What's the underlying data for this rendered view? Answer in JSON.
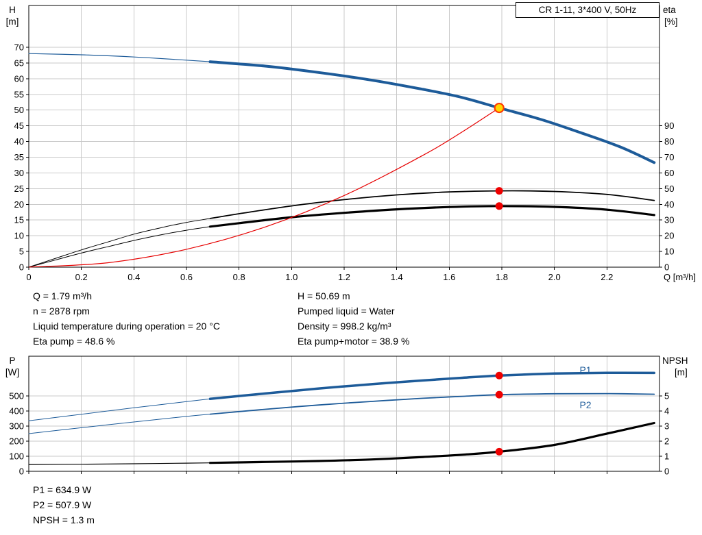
{
  "colors": {
    "grid": "#c9c9c9",
    "axis": "#000000",
    "curve_blue": "#1d5b99",
    "curve_red": "#e60000",
    "curve_black": "#000000",
    "duty_fill": "#ffd800",
    "duty_ring": "#ff3a00",
    "dot_red": "#ee0000"
  },
  "info_top": {
    "left": [
      "Q = 1.79 m³/h",
      "n = 2878 rpm",
      "Liquid temperature during operation = 20 °C",
      "Eta pump = 48.6 %"
    ],
    "right": [
      "H = 50.69 m",
      "Pumped liquid = Water",
      "Density = 998.2 kg/m³",
      "Eta pump+motor = 38.9 %"
    ]
  },
  "info_bottom": [
    "P1 = 634.9 W",
    "P2 = 507.9 W",
    "NPSH = 1.3 m"
  ],
  "chart_data": [
    {
      "type": "line",
      "title": "CR 1-11, 3*400 V, 50Hz",
      "x_axis": {
        "label": "Q [m³/h]",
        "min": 0,
        "max": 2.4,
        "ticks": [
          "0",
          "0.2",
          "0.4",
          "0.6",
          "0.8",
          "1.0",
          "1.2",
          "1.4",
          "1.6",
          "1.8",
          "2.0",
          "2.2"
        ]
      },
      "y_left": {
        "label": "H",
        "unit": "[m]",
        "min": 0,
        "max": 83.3,
        "ticks": [
          "0",
          "5",
          "10",
          "15",
          "20",
          "25",
          "30",
          "35",
          "40",
          "45",
          "50",
          "55",
          "60",
          "65",
          "70"
        ]
      },
      "y_right": {
        "label": "eta",
        "unit": "[%]",
        "min": 0,
        "max": 166.6,
        "ticks": [
          "0",
          "10",
          "20",
          "30",
          "40",
          "50",
          "60",
          "70",
          "80",
          "90"
        ]
      },
      "grid": true,
      "legend": "none",
      "series": [
        {
          "name": "head-curve",
          "label": "",
          "axis": "left",
          "color": "#1d5b99",
          "w1": 1.2,
          "w2": 4,
          "split": 0.69,
          "points": [
            [
              0,
              68
            ],
            [
              0.2,
              67.6
            ],
            [
              0.4,
              66.9
            ],
            [
              0.6,
              65.9
            ],
            [
              0.69,
              65.4
            ],
            [
              0.9,
              64
            ],
            [
              1.1,
              62
            ],
            [
              1.3,
              59.6
            ],
            [
              1.5,
              56.6
            ],
            [
              1.65,
              54
            ],
            [
              1.79,
              50.69
            ],
            [
              1.95,
              47
            ],
            [
              2.1,
              42.8
            ],
            [
              2.25,
              38.3
            ],
            [
              2.38,
              33.3
            ]
          ]
        },
        {
          "name": "eta-pump",
          "label": "",
          "axis": "right",
          "color": "#000000",
          "w1": 1,
          "w2": 1.8,
          "split": 0.69,
          "points": [
            [
              0,
              0
            ],
            [
              0.1,
              5.5
            ],
            [
              0.2,
              11
            ],
            [
              0.3,
              16
            ],
            [
              0.4,
              21
            ],
            [
              0.5,
              25
            ],
            [
              0.6,
              28.5
            ],
            [
              0.69,
              31
            ],
            [
              0.8,
              34
            ],
            [
              1,
              39
            ],
            [
              1.2,
              43
            ],
            [
              1.4,
              46
            ],
            [
              1.6,
              47.9
            ],
            [
              1.79,
              48.6
            ],
            [
              2,
              48.2
            ],
            [
              2.2,
              46.3
            ],
            [
              2.38,
              42.5
            ]
          ]
        },
        {
          "name": "eta-pump-motor",
          "label": "",
          "axis": "right",
          "color": "#000000",
          "w1": 1,
          "w2": 3.2,
          "split": 0.69,
          "points": [
            [
              0,
              0
            ],
            [
              0.1,
              4.5
            ],
            [
              0.2,
              9
            ],
            [
              0.3,
              13
            ],
            [
              0.4,
              17
            ],
            [
              0.5,
              20.5
            ],
            [
              0.6,
              23.5
            ],
            [
              0.69,
              25.8
            ],
            [
              0.8,
              28
            ],
            [
              1,
              31.8
            ],
            [
              1.2,
              34.6
            ],
            [
              1.4,
              36.8
            ],
            [
              1.6,
              38.3
            ],
            [
              1.79,
              38.9
            ],
            [
              2,
              38.4
            ],
            [
              2.2,
              36.6
            ],
            [
              2.38,
              33.2
            ]
          ]
        },
        {
          "name": "system-curve",
          "label": "",
          "axis": "left",
          "color": "#e60000",
          "w1": 1.2,
          "points": [
            [
              0,
              0
            ],
            [
              0.3,
              1.4
            ],
            [
              0.6,
              5.7
            ],
            [
              0.9,
              12.8
            ],
            [
              1.2,
              22.8
            ],
            [
              1.5,
              35.6
            ],
            [
              1.65,
              43.1
            ],
            [
              1.79,
              50.69
            ]
          ]
        }
      ],
      "markers": [
        {
          "kind": "duty-point",
          "q": 1.79,
          "v": 50.69,
          "axis": "left",
          "fill": "#ffd800",
          "ring": "#ff3a00"
        },
        {
          "kind": "dot",
          "q": 1.79,
          "v": 48.6,
          "axis": "right",
          "fill": "#ee0000"
        },
        {
          "kind": "dot",
          "q": 1.79,
          "v": 38.9,
          "axis": "right",
          "fill": "#ee0000"
        }
      ]
    },
    {
      "type": "line",
      "title": "",
      "x_axis": {
        "label": "",
        "min": 0,
        "max": 2.4,
        "ticks": [
          "0",
          "0.2",
          "0.4",
          "0.6",
          "0.8",
          "1.0",
          "1.2",
          "1.4",
          "1.6",
          "1.8",
          "2.0",
          "2.2"
        ]
      },
      "y_left": {
        "label": "P",
        "unit": "[W]",
        "min": 0,
        "max": 763,
        "ticks": [
          "0",
          "100",
          "200",
          "300",
          "400",
          "500"
        ]
      },
      "y_right": {
        "label": "NPSH",
        "unit": "[m]",
        "min": 0,
        "max": 7.63,
        "ticks": [
          "0",
          "1",
          "2",
          "3",
          "4",
          "5"
        ]
      },
      "grid": true,
      "legend": "inline",
      "series": [
        {
          "name": "P1",
          "label": "P1",
          "axis": "left",
          "color": "#1d5b99",
          "w1": 1,
          "w2": 3.5,
          "split": 0.69,
          "points": [
            [
              0,
              335
            ],
            [
              0.2,
              378
            ],
            [
              0.4,
              421
            ],
            [
              0.6,
              462
            ],
            [
              0.69,
              480
            ],
            [
              0.9,
              516
            ],
            [
              1.1,
              548
            ],
            [
              1.3,
              577
            ],
            [
              1.5,
              602
            ],
            [
              1.65,
              620
            ],
            [
              1.79,
              634.9
            ],
            [
              2,
              648
            ],
            [
              2.2,
              653
            ],
            [
              2.38,
              652
            ]
          ]
        },
        {
          "name": "P2",
          "label": "P2",
          "axis": "left",
          "color": "#1d5b99",
          "w1": 1,
          "w2": 1.8,
          "split": 0.69,
          "points": [
            [
              0,
              250
            ],
            [
              0.2,
              289
            ],
            [
              0.4,
              327
            ],
            [
              0.6,
              364
            ],
            [
              0.69,
              379
            ],
            [
              0.9,
              411
            ],
            [
              1.1,
              439
            ],
            [
              1.3,
              463
            ],
            [
              1.5,
              484
            ],
            [
              1.65,
              497
            ],
            [
              1.79,
              507.9
            ],
            [
              2,
              514
            ],
            [
              2.2,
              515
            ],
            [
              2.38,
              511
            ]
          ]
        },
        {
          "name": "NPSH-curve",
          "label": "",
          "axis": "right",
          "color": "#000000",
          "w1": 1.2,
          "w2": 3.2,
          "split": 0.69,
          "points": [
            [
              0,
              0.45
            ],
            [
              0.2,
              0.47
            ],
            [
              0.4,
              0.5
            ],
            [
              0.6,
              0.54
            ],
            [
              0.69,
              0.56
            ],
            [
              0.9,
              0.62
            ],
            [
              1.1,
              0.68
            ],
            [
              1.3,
              0.78
            ],
            [
              1.5,
              0.95
            ],
            [
              1.65,
              1.1
            ],
            [
              1.79,
              1.3
            ],
            [
              2,
              1.75
            ],
            [
              2.2,
              2.5
            ],
            [
              2.38,
              3.2
            ]
          ]
        }
      ],
      "markers": [
        {
          "kind": "dot",
          "q": 1.79,
          "v": 634.9,
          "axis": "left",
          "fill": "#ee0000"
        },
        {
          "kind": "dot",
          "q": 1.79,
          "v": 507.9,
          "axis": "left",
          "fill": "#ee0000"
        },
        {
          "kind": "dot",
          "q": 1.79,
          "v": 1.3,
          "axis": "right",
          "fill": "#ee0000"
        }
      ]
    }
  ]
}
